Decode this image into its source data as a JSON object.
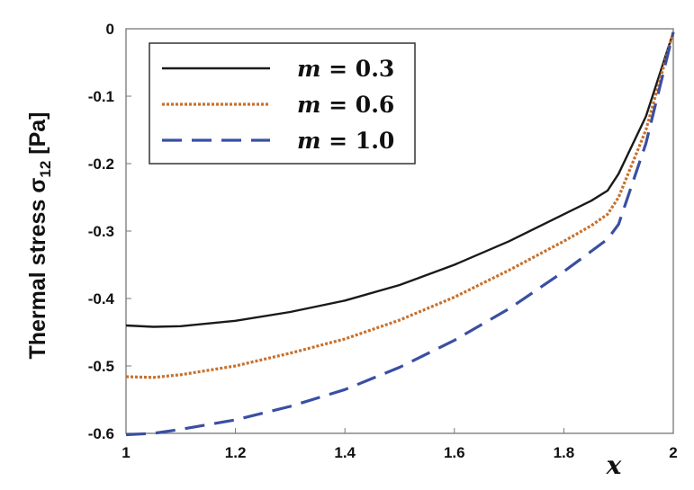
{
  "chart_data": {
    "type": "line",
    "ylabel": "Thermal stress σ",
    "ylabel_sub": "12",
    "ylabel_unit": " [Pa]",
    "xlabel": "x",
    "xlim": [
      1,
      2
    ],
    "ylim": [
      -0.6,
      0
    ],
    "x_ticks": [
      "1",
      "1.2",
      "1.4",
      "1.6",
      "1.8",
      "2"
    ],
    "y_ticks": [
      "0",
      "-0.1",
      "-0.2",
      "-0.3",
      "-0.4",
      "-0.5",
      "-0.6"
    ],
    "grid": false,
    "legend_position": "top-left",
    "series": [
      {
        "name": "m = 0.3",
        "legend_var": "m",
        "legend_rest": " = 0.3",
        "color": "#1a1a1a",
        "dash": "solid",
        "x": [
          1.0,
          1.05,
          1.1,
          1.2,
          1.3,
          1.4,
          1.5,
          1.6,
          1.7,
          1.8,
          1.85,
          1.88,
          1.9,
          1.95,
          2.0
        ],
        "y": [
          -0.44,
          -0.442,
          -0.441,
          -0.433,
          -0.42,
          -0.403,
          -0.38,
          -0.35,
          -0.315,
          -0.275,
          -0.255,
          -0.24,
          -0.215,
          -0.13,
          -0.005
        ]
      },
      {
        "name": "m = 0.6",
        "legend_var": "m",
        "legend_rest": " = 0.6",
        "color": "#c8702c",
        "dash": "dotted",
        "x": [
          1.0,
          1.05,
          1.1,
          1.2,
          1.3,
          1.4,
          1.5,
          1.6,
          1.7,
          1.8,
          1.85,
          1.88,
          1.9,
          1.95,
          2.0
        ],
        "y": [
          -0.516,
          -0.517,
          -0.513,
          -0.5,
          -0.481,
          -0.46,
          -0.432,
          -0.398,
          -0.358,
          -0.315,
          -0.292,
          -0.275,
          -0.25,
          -0.15,
          -0.005
        ]
      },
      {
        "name": "m = 1.0",
        "legend_var": "m",
        "legend_rest": " = 1.0",
        "color": "#3a4fa2",
        "dash": "dashed",
        "x": [
          1.0,
          1.05,
          1.1,
          1.2,
          1.3,
          1.4,
          1.5,
          1.6,
          1.7,
          1.8,
          1.85,
          1.88,
          1.9,
          1.95,
          2.0
        ],
        "y": [
          -0.602,
          -0.6,
          -0.594,
          -0.58,
          -0.56,
          -0.535,
          -0.502,
          -0.462,
          -0.415,
          -0.36,
          -0.33,
          -0.312,
          -0.29,
          -0.17,
          -0.005
        ]
      }
    ]
  }
}
